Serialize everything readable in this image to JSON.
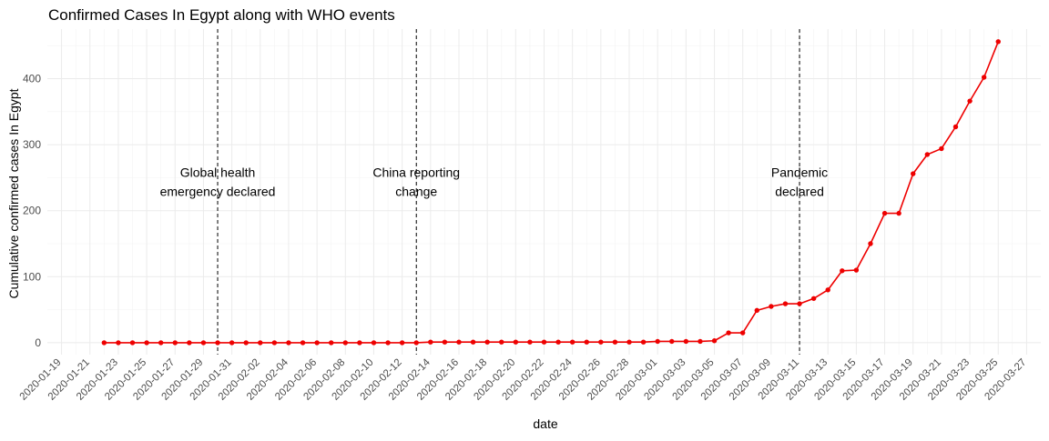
{
  "chart_data": {
    "type": "line",
    "title": "Confirmed Cases In Egypt along with WHO events",
    "xlabel": "date",
    "ylabel": "Cumulative confirmed cases In Egypt",
    "xlim": [
      "2020-01-18",
      "2020-03-28"
    ],
    "ylim": [
      -18,
      475
    ],
    "y_ticks": [
      0,
      100,
      200,
      300,
      400
    ],
    "x_ticks": [
      "2020-01-19",
      "2020-01-21",
      "2020-01-23",
      "2020-01-25",
      "2020-01-27",
      "2020-01-29",
      "2020-01-31",
      "2020-02-02",
      "2020-02-04",
      "2020-02-06",
      "2020-02-08",
      "2020-02-10",
      "2020-02-12",
      "2020-02-14",
      "2020-02-16",
      "2020-02-18",
      "2020-02-20",
      "2020-02-22",
      "2020-02-24",
      "2020-02-26",
      "2020-02-28",
      "2020-03-01",
      "2020-03-03",
      "2020-03-05",
      "2020-03-07",
      "2020-03-09",
      "2020-03-11",
      "2020-03-13",
      "2020-03-15",
      "2020-03-17",
      "2020-03-19",
      "2020-03-21",
      "2020-03-23",
      "2020-03-25",
      "2020-03-27"
    ],
    "grid": true,
    "color": "#ee0000",
    "series": [
      {
        "x": [
          "2020-01-22",
          "2020-01-23",
          "2020-01-24",
          "2020-01-25",
          "2020-01-26",
          "2020-01-27",
          "2020-01-28",
          "2020-01-29",
          "2020-01-30",
          "2020-01-31",
          "2020-02-01",
          "2020-02-02",
          "2020-02-03",
          "2020-02-04",
          "2020-02-05",
          "2020-02-06",
          "2020-02-07",
          "2020-02-08",
          "2020-02-09",
          "2020-02-10",
          "2020-02-11",
          "2020-02-12",
          "2020-02-13",
          "2020-02-14",
          "2020-02-15",
          "2020-02-16",
          "2020-02-17",
          "2020-02-18",
          "2020-02-19",
          "2020-02-20",
          "2020-02-21",
          "2020-02-22",
          "2020-02-23",
          "2020-02-24",
          "2020-02-25",
          "2020-02-26",
          "2020-02-27",
          "2020-02-28",
          "2020-02-29",
          "2020-03-01",
          "2020-03-02",
          "2020-03-03",
          "2020-03-04",
          "2020-03-05",
          "2020-03-06",
          "2020-03-07",
          "2020-03-08",
          "2020-03-09",
          "2020-03-10",
          "2020-03-11",
          "2020-03-12",
          "2020-03-13",
          "2020-03-14",
          "2020-03-15",
          "2020-03-16",
          "2020-03-17",
          "2020-03-18",
          "2020-03-19",
          "2020-03-20",
          "2020-03-21",
          "2020-03-22",
          "2020-03-23",
          "2020-03-24",
          "2020-03-25"
        ],
        "values": [
          0,
          0,
          0,
          0,
          0,
          0,
          0,
          0,
          0,
          0,
          0,
          0,
          0,
          0,
          0,
          0,
          0,
          0,
          0,
          0,
          0,
          0,
          0,
          1,
          1,
          1,
          1,
          1,
          1,
          1,
          1,
          1,
          1,
          1,
          1,
          1,
          1,
          1,
          1,
          2,
          2,
          2,
          2,
          3,
          15,
          15,
          49,
          55,
          59,
          59,
          67,
          80,
          109,
          110,
          150,
          196,
          196,
          256,
          285,
          294,
          327,
          366,
          402,
          456
        ]
      }
    ],
    "events": [
      {
        "date": "2020-01-30",
        "label": [
          "Global health",
          "emergency declared"
        ]
      },
      {
        "date": "2020-02-13",
        "label": [
          "China reporting",
          "change"
        ]
      },
      {
        "date": "2020-03-11",
        "label": [
          "Pandemic",
          "declared"
        ]
      }
    ]
  }
}
